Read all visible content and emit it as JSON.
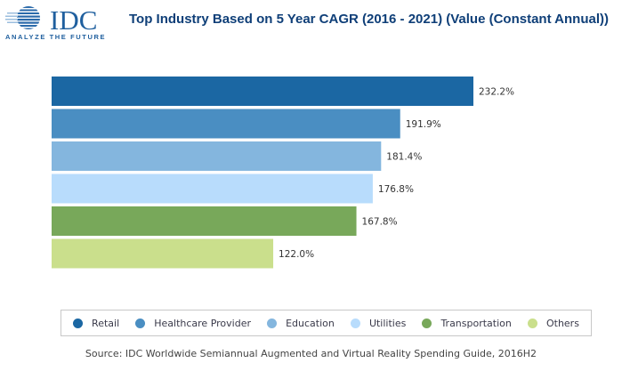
{
  "logo": {
    "name": "IDC",
    "tagline": "ANALYZE THE FUTURE",
    "icon": "globe-stripes-icon"
  },
  "chart_data": {
    "type": "bar",
    "orientation": "horizontal",
    "title": "Top Industry Based on 5 Year CAGR (2016 - 2021) (Value (Constant Annual))",
    "xlabel": "",
    "ylabel": "",
    "xlim": [
      0,
      232.2
    ],
    "grid": false,
    "legend_position": "bottom",
    "value_suffix": "%",
    "categories": [
      "Retail",
      "Healthcare Provider",
      "Education",
      "Utilities",
      "Transportation",
      "Others"
    ],
    "values": [
      232.2,
      191.9,
      181.4,
      176.8,
      167.8,
      122.0
    ],
    "labels": [
      "232.2%",
      "191.9%",
      "181.4%",
      "176.8%",
      "167.8%",
      "122.0%"
    ],
    "colors": [
      "#1b67a3",
      "#4a8ec2",
      "#84b6de",
      "#b8dcfc",
      "#78a85a",
      "#cadf8c"
    ],
    "source": "Source: IDC Worldwide Semiannual Augmented and Virtual Reality Spending Guide, 2016H2"
  }
}
